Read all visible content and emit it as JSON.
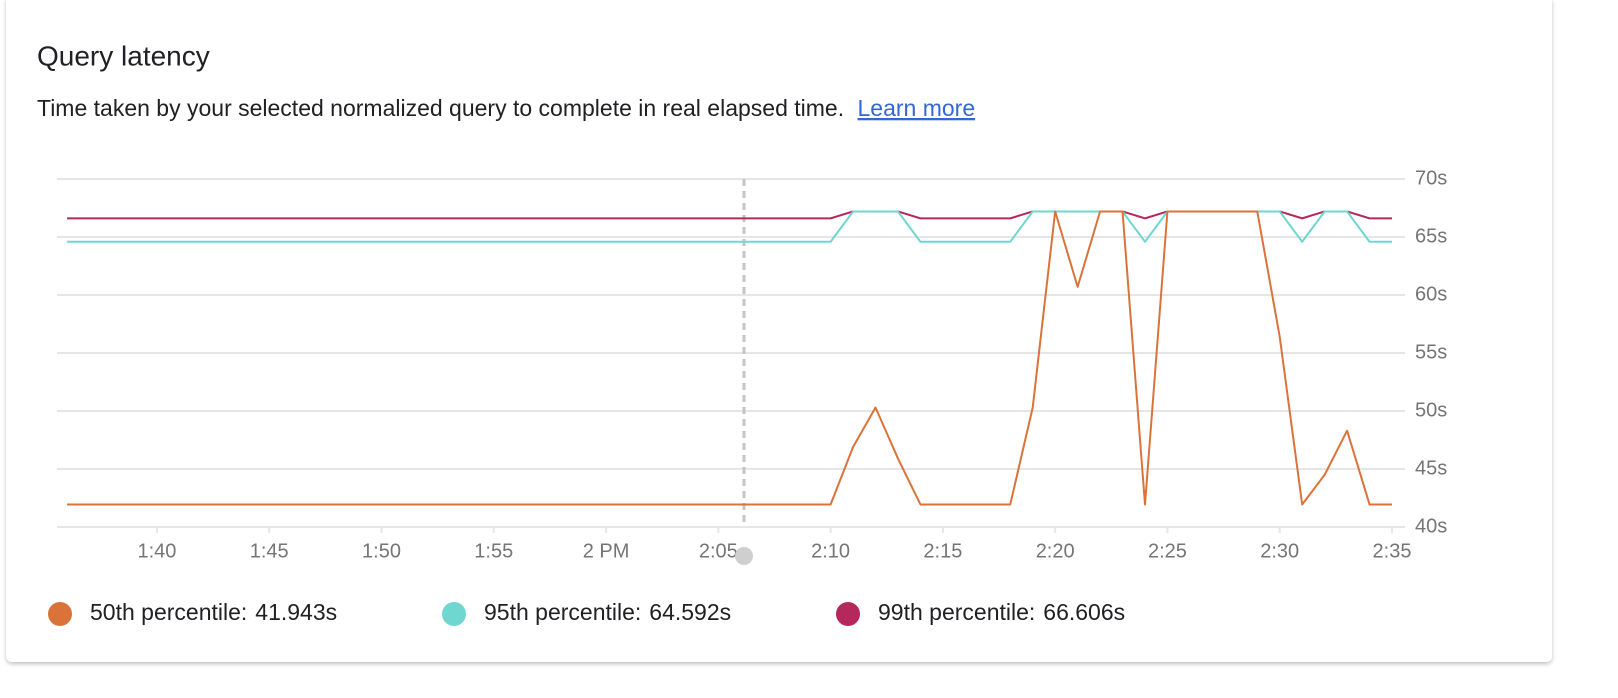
{
  "card": {
    "title": "Query latency",
    "description": "Time taken by your selected normalized query to complete in real elapsed time.",
    "link": "Learn more"
  },
  "chart_data": {
    "type": "line",
    "x": [
      96,
      97,
      98,
      99,
      100,
      101,
      102,
      103,
      104,
      105,
      106,
      107,
      108,
      109,
      110,
      111,
      112,
      113,
      114,
      115,
      116,
      117,
      118,
      119,
      120,
      121,
      122,
      123,
      124,
      125,
      126,
      127,
      128,
      129,
      130,
      131,
      132,
      133,
      134,
      135,
      136,
      137,
      138,
      139,
      140,
      141,
      142,
      143,
      144,
      145,
      146,
      147,
      148,
      149,
      150,
      151,
      152,
      153,
      154,
      155
    ],
    "xlim": [
      95.55,
      155
    ],
    "xticks": [
      {
        "value": 100,
        "label": "1:40"
      },
      {
        "value": 105,
        "label": "1:45"
      },
      {
        "value": 110,
        "label": "1:50"
      },
      {
        "value": 115,
        "label": "1:55"
      },
      {
        "value": 120,
        "label": "2 PM"
      },
      {
        "value": 125,
        "label": "2:05"
      },
      {
        "value": 130,
        "label": "2:10"
      },
      {
        "value": 135,
        "label": "2:15"
      },
      {
        "value": 140,
        "label": "2:20"
      },
      {
        "value": 145,
        "label": "2:25"
      },
      {
        "value": 150,
        "label": "2:30"
      },
      {
        "value": 155,
        "label": "2:35"
      }
    ],
    "ylim": [
      40,
      70
    ],
    "yticks": [
      {
        "value": 40,
        "label": "40s"
      },
      {
        "value": 45,
        "label": "45s"
      },
      {
        "value": 50,
        "label": "50s"
      },
      {
        "value": 55,
        "label": "55s"
      },
      {
        "value": 60,
        "label": "60s"
      },
      {
        "value": 65,
        "label": "65s"
      },
      {
        "value": 70,
        "label": "70s"
      }
    ],
    "grid": true,
    "series": [
      {
        "name": "50th percentile:",
        "legend_value": "41.943s",
        "color": "#da7339",
        "values": [
          41.943,
          41.943,
          41.943,
          41.943,
          41.943,
          41.943,
          41.943,
          41.943,
          41.943,
          41.943,
          41.943,
          41.943,
          41.943,
          41.943,
          41.943,
          41.943,
          41.943,
          41.943,
          41.943,
          41.943,
          41.943,
          41.943,
          41.943,
          41.943,
          41.943,
          41.943,
          41.943,
          41.943,
          41.943,
          41.943,
          41.943,
          41.943,
          41.943,
          41.943,
          41.943,
          46.9,
          50.3,
          45.9,
          41.943,
          41.943,
          41.943,
          41.943,
          41.943,
          50.3,
          67.2,
          60.7,
          67.2,
          67.2,
          41.943,
          67.2,
          67.2,
          67.2,
          67.2,
          67.2,
          56.4,
          41.943,
          44.5,
          48.3,
          41.943,
          41.943
        ]
      },
      {
        "name": "95th percentile:",
        "legend_value": "64.592s",
        "color": "#6fd7cf",
        "values": [
          64.592,
          64.592,
          64.592,
          64.592,
          64.592,
          64.592,
          64.592,
          64.592,
          64.592,
          64.592,
          64.592,
          64.592,
          64.592,
          64.592,
          64.592,
          64.592,
          64.592,
          64.592,
          64.592,
          64.592,
          64.592,
          64.592,
          64.592,
          64.592,
          64.592,
          64.592,
          64.592,
          64.592,
          64.592,
          64.592,
          64.592,
          64.592,
          64.592,
          64.592,
          64.592,
          67.2,
          67.2,
          67.2,
          64.592,
          64.592,
          64.592,
          64.592,
          64.592,
          67.2,
          67.2,
          67.2,
          67.2,
          67.2,
          64.592,
          67.2,
          67.2,
          67.2,
          67.2,
          67.2,
          67.2,
          64.592,
          67.2,
          67.2,
          64.592,
          64.592
        ]
      },
      {
        "name": "99th percentile:",
        "legend_value": "66.606s",
        "color": "#b5285b",
        "values": [
          66.606,
          66.606,
          66.606,
          66.606,
          66.606,
          66.606,
          66.606,
          66.606,
          66.606,
          66.606,
          66.606,
          66.606,
          66.606,
          66.606,
          66.606,
          66.606,
          66.606,
          66.606,
          66.606,
          66.606,
          66.606,
          66.606,
          66.606,
          66.606,
          66.606,
          66.606,
          66.606,
          66.606,
          66.606,
          66.606,
          66.606,
          66.606,
          66.606,
          66.606,
          66.606,
          67.2,
          67.2,
          67.2,
          66.606,
          66.606,
          66.606,
          66.606,
          66.606,
          67.2,
          67.2,
          67.2,
          67.2,
          67.2,
          66.606,
          67.2,
          67.2,
          67.2,
          67.2,
          67.2,
          67.2,
          66.606,
          67.2,
          67.2,
          66.606,
          66.606
        ]
      }
    ]
  }
}
